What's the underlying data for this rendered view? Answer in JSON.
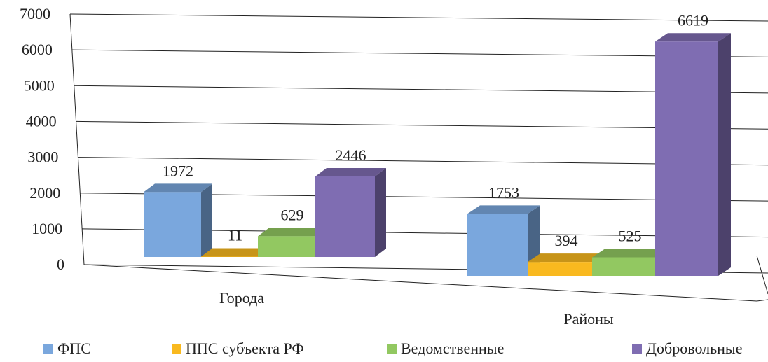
{
  "chart_data": {
    "type": "bar3d",
    "categories": [
      "Города",
      "Районы"
    ],
    "series": [
      {
        "name": "ФПС",
        "color": "#7aa7dd",
        "values": [
          1972,
          1753
        ]
      },
      {
        "name": "ППС субъекта РФ",
        "color": "#f9b91f",
        "values": [
          11,
          394
        ]
      },
      {
        "name": "Ведомственные",
        "color": "#92c861",
        "values": [
          629,
          525
        ]
      },
      {
        "name": "Добровольные",
        "color": "#7f6db2",
        "values": [
          2446,
          6619
        ]
      }
    ],
    "ylim": [
      0,
      7000
    ],
    "yticks": [
      0,
      1000,
      2000,
      3000,
      4000,
      5000,
      6000,
      7000
    ],
    "grid": true,
    "legend": "bottom"
  }
}
